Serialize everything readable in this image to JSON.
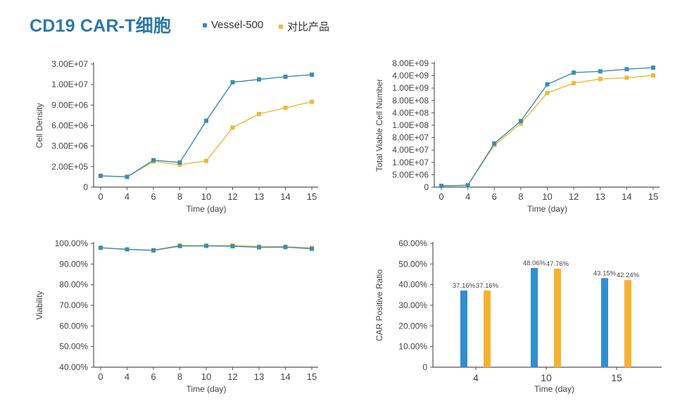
{
  "header": {
    "title": "CD19 CAR-T细胞",
    "legend": [
      {
        "label": "Vessel-500",
        "color": "#3a8db5"
      },
      {
        "label": "对比产品",
        "color": "#efb83a"
      }
    ]
  },
  "chart_data": [
    {
      "type": "line",
      "ylabel": "Cell Density",
      "xlabel": "Time (day)",
      "x": [
        "0",
        "4",
        "6",
        "8",
        "10",
        "12",
        "13",
        "14",
        "15"
      ],
      "yticks": [
        0,
        200000,
        3000000,
        6000000,
        9000000,
        10000000,
        30000000
      ],
      "ytick_labels": [
        "0",
        "2.00E+05",
        "3.00E+06",
        "6.00E+06",
        "9.00E+06",
        "1.00E+07",
        "3.00E+07"
      ],
      "series": [
        {
          "name": "Vessel-500",
          "color": "#3a8db5",
          "values": [
            110000,
            100000,
            1070000,
            760000,
            6700000,
            12200000,
            15000000,
            17600000,
            19600000
          ]
        },
        {
          "name": "对比产品",
          "color": "#efb83a",
          "values": [
            110000,
            100000,
            900000,
            450000,
            980000,
            5700000,
            7700000,
            8600000,
            9160000
          ]
        }
      ],
      "grid": false
    },
    {
      "type": "line",
      "ylabel": "Total Viable Cell Number",
      "xlabel": "Time (day)",
      "x": [
        "0",
        "4",
        "6",
        "8",
        "10",
        "12",
        "13",
        "14",
        "15"
      ],
      "yticks": [
        0,
        5000000,
        10000000,
        40000000,
        80000000,
        100000000,
        400000000,
        800000000,
        1000000000,
        4000000000,
        8000000000
      ],
      "ytick_labels": [
        "0",
        "5.00E+06",
        "1.00E+07",
        "4.00E+07",
        "8.00E+07",
        "1.00E+08",
        "4.00E+08",
        "8.00E+08",
        "1.00E+09",
        "4.00E+09",
        "8.00E+09"
      ],
      "series": [
        {
          "name": "Vessel-500",
          "color": "#3a8db5",
          "values": [
            500000,
            750000,
            61000000,
            200000000,
            1900000000,
            5000000000,
            5400000000,
            6100000000,
            6600000000
          ]
        },
        {
          "name": "对比产品",
          "color": "#efb83a",
          "values": [
            500000,
            750000,
            56000000,
            140000000,
            920000000,
            2200000000,
            3200000000,
            3500000000,
            4100000000
          ]
        }
      ],
      "grid": false
    },
    {
      "type": "line",
      "ylabel": "Viability",
      "xlabel": "Time (day)",
      "x": [
        "0",
        "4",
        "6",
        "8",
        "10",
        "12",
        "13",
        "14",
        "15"
      ],
      "yticks": [
        40,
        50,
        60,
        70,
        80,
        90,
        100
      ],
      "ytick_labels": [
        "40.00%",
        "50.00%",
        "60.00%",
        "70.00%",
        "80.00%",
        "90.00%",
        "100.00%"
      ],
      "series": [
        {
          "name": "Vessel-500",
          "color": "#3a8db5",
          "values": [
            97.9,
            97.1,
            96.6,
            98.7,
            98.8,
            98.6,
            98.1,
            98.2,
            97.4
          ]
        },
        {
          "name": "对比产品",
          "color": "#efb83a",
          "values": [
            97.9,
            97.1,
            96.7,
            99.0,
            98.9,
            99.0,
            98.5,
            98.4,
            97.8
          ]
        }
      ],
      "grid": false
    },
    {
      "type": "bar",
      "ylabel": "CAR Positive Ratio",
      "xlabel": "Time (day)",
      "categories": [
        "4",
        "10",
        "15"
      ],
      "yticks": [
        0,
        10,
        20,
        30,
        40,
        50,
        60
      ],
      "ytick_labels": [
        "0",
        "10.00%",
        "20.00%",
        "30.00%",
        "40.00%",
        "50.00%",
        "60.00%"
      ],
      "series": [
        {
          "name": "Vessel-500",
          "color": "#2f8fd0",
          "values": [
            37.16,
            48.06,
            43.15
          ],
          "labels": [
            "37.16%",
            "48.06%",
            "43.15%"
          ]
        },
        {
          "name": "对比产品",
          "color": "#f4b233",
          "values": [
            37.16,
            47.76,
            42.24
          ],
          "labels": [
            "37.16%",
            "47.76%",
            "42.24%"
          ]
        }
      ],
      "grid": false
    }
  ]
}
